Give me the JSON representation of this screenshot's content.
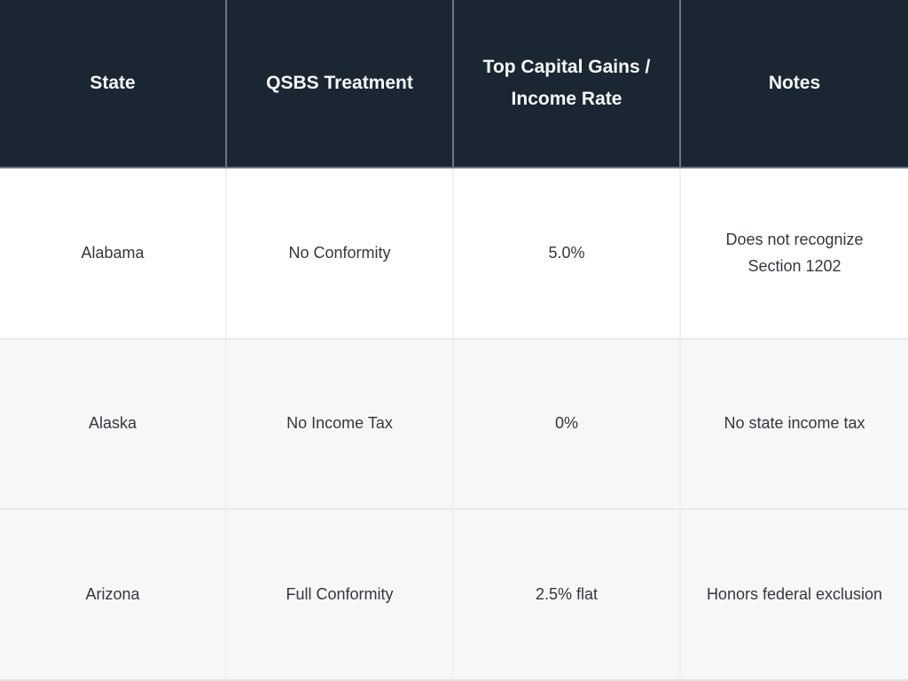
{
  "chart_data": {
    "type": "table",
    "title": "",
    "columns": [
      "State",
      "QSBS Treatment",
      "Top Capital Gains / Income Rate",
      "Notes"
    ],
    "rows": [
      [
        "Alabama",
        "No Conformity",
        "5.0%",
        "Does not recognize Section 1202"
      ],
      [
        "Alaska",
        "No Income Tax",
        "0%",
        "No state income tax"
      ],
      [
        "Arizona",
        "Full Conformity",
        "2.5% flat",
        "Honors federal exclusion"
      ]
    ]
  },
  "table": {
    "headers": {
      "state": "State",
      "treatment": "QSBS Treatment",
      "rate": "Top Capital Gains /\nIncome Rate",
      "notes": "Notes"
    },
    "rows": [
      {
        "state": "Alabama",
        "treatment": "No Conformity",
        "rate": "5.0%",
        "notes": "Does not recognize\nSection 1202"
      },
      {
        "state": "Alaska",
        "treatment": "No Income Tax",
        "rate": "0%",
        "notes": "No state income tax"
      },
      {
        "state": "Arizona",
        "treatment": "Full Conformity",
        "rate": "2.5% flat",
        "notes": "Honors federal exclusion"
      }
    ]
  },
  "colors": {
    "header_background": "#1a2733",
    "header_text": "#f7f9fa",
    "header_divider": "#6e7780",
    "body_text": "#33383d",
    "row_white": "#ffffff",
    "row_gray": "#f6f7f9",
    "body_divider_vertical": "#eef0f1",
    "body_divider_horizontal": "#e8eaec",
    "bottom_edge": "#e0e2e4"
  }
}
